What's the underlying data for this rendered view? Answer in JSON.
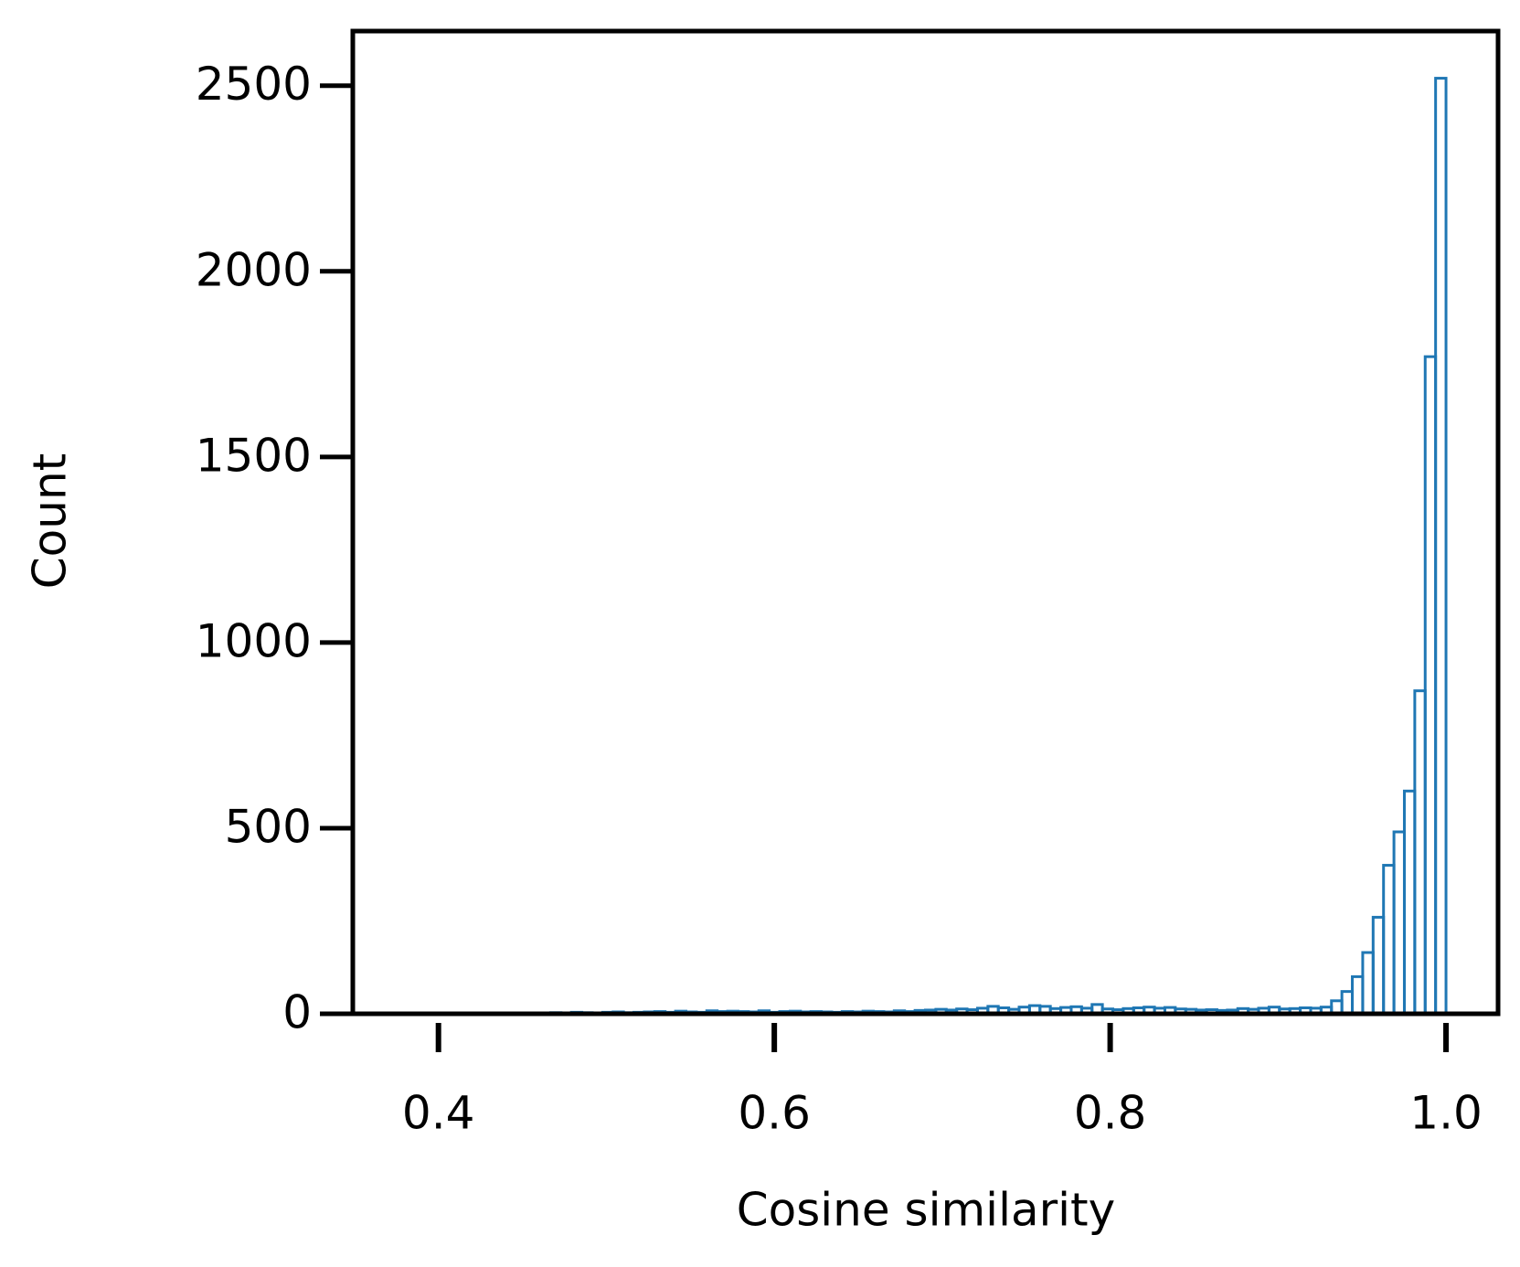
{
  "chart_data": {
    "type": "histogram",
    "xlabel": "Cosine similarity",
    "ylabel": "Count",
    "color": "#1f77b4",
    "bins": [
      0.38,
      0.3862,
      0.3924,
      0.3986,
      0.4048,
      0.411,
      0.4172,
      0.4234,
      0.4296,
      0.4358,
      0.442,
      0.4482,
      0.4544,
      0.4606,
      0.4668,
      0.473,
      0.4792,
      0.4854,
      0.4916,
      0.4978,
      0.504,
      0.5102,
      0.5164,
      0.5226,
      0.5288,
      0.535,
      0.5412,
      0.5474,
      0.5536,
      0.5598,
      0.566,
      0.5722,
      0.5784,
      0.5846,
      0.5908,
      0.597,
      0.6032,
      0.6094,
      0.6156,
      0.6218,
      0.628,
      0.6342,
      0.6404,
      0.6466,
      0.6528,
      0.659,
      0.6652,
      0.6714,
      0.6776,
      0.6838,
      0.69,
      0.6962,
      0.7024,
      0.7086,
      0.7148,
      0.721,
      0.7272,
      0.7334,
      0.7396,
      0.7458,
      0.752,
      0.7582,
      0.7644,
      0.7706,
      0.7768,
      0.783,
      0.7892,
      0.7954,
      0.8016,
      0.8078,
      0.814,
      0.8202,
      0.8264,
      0.8326,
      0.8388,
      0.845,
      0.8512,
      0.8574,
      0.8636,
      0.8698,
      0.876,
      0.8822,
      0.8884,
      0.8946,
      0.9008,
      0.907,
      0.9132,
      0.9194,
      0.9256,
      0.9318,
      0.938,
      0.9442,
      0.9504,
      0.9566,
      0.9628,
      0.969,
      0.9752,
      0.9814,
      0.9876,
      0.9938,
      1.0
    ],
    "counts": [
      0,
      0,
      0,
      0,
      1,
      0,
      0,
      0,
      1,
      1,
      0,
      2,
      1,
      2,
      3,
      2,
      4,
      3,
      2,
      4,
      5,
      3,
      4,
      5,
      6,
      4,
      7,
      5,
      4,
      8,
      6,
      7,
      6,
      5,
      8,
      4,
      6,
      7,
      5,
      6,
      5,
      4,
      6,
      5,
      7,
      6,
      5,
      8,
      6,
      9,
      10,
      12,
      10,
      13,
      11,
      15,
      20,
      16,
      12,
      18,
      22,
      20,
      14,
      17,
      19,
      15,
      25,
      13,
      11,
      14,
      16,
      18,
      15,
      17,
      13,
      12,
      10,
      11,
      9,
      10,
      14,
      12,
      15,
      18,
      13,
      14,
      16,
      15,
      18,
      35,
      60,
      100,
      165,
      260,
      400,
      490,
      600,
      870,
      1770,
      2520
    ],
    "xlim": [
      0.349,
      1.031
    ],
    "ylim": [
      0,
      2647
    ],
    "xticks": [
      0.4,
      0.6,
      0.8,
      {
        "value": 1,
        "label": "1.0"
      }
    ],
    "yticks": [
      0,
      500,
      1000,
      1500,
      2000,
      2500
    ]
  }
}
